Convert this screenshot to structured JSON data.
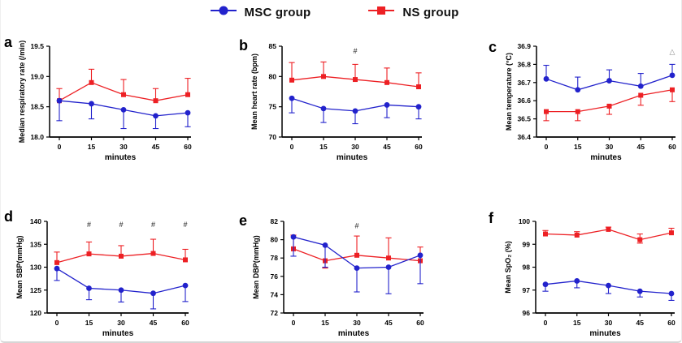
{
  "legend": {
    "items": [
      {
        "label": "MSC group",
        "color": "#2222cc",
        "marker": "circle"
      },
      {
        "label": "NS group",
        "color": "#ed2024",
        "marker": "square"
      }
    ]
  },
  "chart_data": [
    {
      "type": "line",
      "panel": "a",
      "xlabel": "minutes",
      "ylabel": "Median respiratory rate (/min)",
      "x": [
        0,
        15,
        30,
        45,
        60
      ],
      "xlim": [
        0,
        60
      ],
      "ylim": [
        18.0,
        19.5
      ],
      "yticks": [
        18.0,
        18.5,
        19.0,
        19.5
      ],
      "ydecimals": 1,
      "grid": false,
      "series": [
        {
          "name": "MSC group",
          "color": "#2222cc",
          "marker": "circle",
          "values": [
            18.6,
            18.55,
            18.45,
            18.35,
            18.4
          ],
          "err_up": [
            0,
            0,
            0,
            0,
            0
          ],
          "err_down": [
            0.33,
            0.25,
            0.31,
            0.21,
            0.23
          ]
        },
        {
          "name": "NS group",
          "color": "#ed2024",
          "marker": "square",
          "values": [
            18.6,
            18.9,
            18.7,
            18.6,
            18.7
          ],
          "err_up": [
            0.2,
            0.22,
            0.25,
            0.2,
            0.27
          ],
          "err_down": [
            0,
            0,
            0,
            0,
            0
          ]
        }
      ],
      "annotations": []
    },
    {
      "type": "line",
      "panel": "b",
      "xlabel": "minutes",
      "ylabel": "Mean heart rate (bpm)",
      "x": [
        0,
        15,
        30,
        45,
        60
      ],
      "xlim": [
        0,
        60
      ],
      "ylim": [
        70,
        85
      ],
      "yticks": [
        70,
        75,
        80,
        85
      ],
      "ydecimals": 0,
      "grid": false,
      "series": [
        {
          "name": "MSC group",
          "color": "#2222cc",
          "marker": "circle",
          "values": [
            76.4,
            74.7,
            74.3,
            75.3,
            75.0
          ],
          "err_up": [
            0,
            0,
            0,
            0,
            0
          ],
          "err_down": [
            2.4,
            2.3,
            2.1,
            2.1,
            2.0
          ]
        },
        {
          "name": "NS group",
          "color": "#ed2024",
          "marker": "square",
          "values": [
            79.4,
            80.0,
            79.5,
            79.0,
            78.3
          ],
          "err_up": [
            2.9,
            2.4,
            2.5,
            2.4,
            2.3
          ],
          "err_down": [
            0,
            0,
            0,
            0,
            0
          ]
        }
      ],
      "annotations": [
        {
          "x": 30,
          "y": 84.2,
          "text": "#",
          "color": "#222"
        }
      ]
    },
    {
      "type": "line",
      "panel": "c",
      "xlabel": "minutes",
      "ylabel": "Mean temperature (°C)",
      "x": [
        0,
        15,
        30,
        45,
        60
      ],
      "xlim": [
        0,
        60
      ],
      "ylim": [
        36.4,
        36.9
      ],
      "yticks": [
        36.4,
        36.5,
        36.6,
        36.7,
        36.8,
        36.9
      ],
      "ydecimals": 1,
      "grid": false,
      "series": [
        {
          "name": "MSC group",
          "color": "#2222cc",
          "marker": "circle",
          "values": [
            36.72,
            36.66,
            36.71,
            36.68,
            36.74
          ],
          "err_up": [
            0.075,
            0.07,
            0.06,
            0.07,
            0.06
          ],
          "err_down": [
            0,
            0,
            0,
            0,
            0
          ]
        },
        {
          "name": "NS group",
          "color": "#ed2024",
          "marker": "square",
          "values": [
            36.54,
            36.54,
            36.57,
            36.63,
            36.66
          ],
          "err_up": [
            0,
            0,
            0,
            0,
            0
          ],
          "err_down": [
            0.05,
            0.05,
            0.045,
            0.055,
            0.065
          ]
        }
      ],
      "annotations": [
        {
          "x": 60,
          "y": 36.87,
          "text": "△",
          "color": "#8a8a8a"
        }
      ]
    },
    {
      "type": "line",
      "panel": "d",
      "xlabel": "minutes",
      "ylabel": "Mean SBP(mmHg)",
      "x": [
        0,
        15,
        30,
        45,
        60
      ],
      "xlim": [
        0,
        60
      ],
      "ylim": [
        120,
        140
      ],
      "yticks": [
        120,
        125,
        130,
        135,
        140
      ],
      "ydecimals": 0,
      "grid": false,
      "series": [
        {
          "name": "MSC group",
          "color": "#2222cc",
          "marker": "circle",
          "values": [
            129.7,
            125.4,
            125.0,
            124.3,
            126.0
          ],
          "err_up": [
            0,
            0,
            0,
            0,
            0
          ],
          "err_down": [
            2.6,
            2.5,
            2.6,
            3.4,
            3.5
          ]
        },
        {
          "name": "NS group",
          "color": "#ed2024",
          "marker": "square",
          "values": [
            131.0,
            132.9,
            132.4,
            133.0,
            131.6
          ],
          "err_up": [
            2.3,
            2.6,
            2.3,
            3.1,
            2.3
          ],
          "err_down": [
            0,
            0,
            0,
            0,
            0
          ]
        }
      ],
      "annotations": [
        {
          "x": 15,
          "y": 139.3,
          "text": "#",
          "color": "#222"
        },
        {
          "x": 30,
          "y": 139.3,
          "text": "#",
          "color": "#222"
        },
        {
          "x": 45,
          "y": 139.3,
          "text": "#",
          "color": "#222"
        },
        {
          "x": 60,
          "y": 139.3,
          "text": "#",
          "color": "#222"
        }
      ]
    },
    {
      "type": "line",
      "panel": "e",
      "xlabel": "minutes",
      "ylabel": "Mean DBP(mmHg)",
      "x": [
        0,
        15,
        30,
        45,
        60
      ],
      "xlim": [
        0,
        60
      ],
      "ylim": [
        72,
        82
      ],
      "yticks": [
        72,
        74,
        76,
        78,
        80,
        82
      ],
      "ydecimals": 0,
      "grid": false,
      "series": [
        {
          "name": "MSC group",
          "color": "#2222cc",
          "marker": "circle",
          "values": [
            80.3,
            79.4,
            76.9,
            77.0,
            78.3
          ],
          "err_up": [
            0,
            0,
            0,
            0,
            0
          ],
          "err_down": [
            2.1,
            2.4,
            2.6,
            2.9,
            3.1
          ]
        },
        {
          "name": "NS group",
          "color": "#ed2024",
          "marker": "square",
          "values": [
            79.0,
            77.7,
            78.3,
            78.0,
            77.7
          ],
          "err_up": [
            1.5,
            0,
            2.1,
            2.2,
            1.5
          ],
          "err_down": [
            0,
            0.8,
            0,
            0,
            0
          ]
        }
      ],
      "annotations": [
        {
          "x": 30,
          "y": 81.5,
          "text": "#",
          "color": "#222"
        }
      ]
    },
    {
      "type": "line",
      "panel": "f",
      "xlabel": "minutes",
      "ylabel": "Mean SpO₂ (%)",
      "x": [
        0,
        15,
        30,
        45,
        60
      ],
      "xlim": [
        0,
        60
      ],
      "ylim": [
        96,
        100
      ],
      "yticks": [
        96,
        97,
        98,
        99,
        100
      ],
      "ydecimals": 0,
      "grid": false,
      "series": [
        {
          "name": "MSC group",
          "color": "#2222cc",
          "marker": "circle",
          "values": [
            97.25,
            97.4,
            97.2,
            96.95,
            96.85
          ],
          "err_up": [
            0,
            0,
            0,
            0,
            0
          ],
          "err_down": [
            0.3,
            0.3,
            0.35,
            0.25,
            0.3
          ]
        },
        {
          "name": "NS group",
          "color": "#ed2024",
          "marker": "square",
          "values": [
            99.45,
            99.4,
            99.65,
            99.2,
            99.5
          ],
          "err_up": [
            0.15,
            0.15,
            0.1,
            0.25,
            0.2
          ],
          "err_down": [
            0,
            0,
            0,
            0.15,
            0
          ]
        }
      ],
      "annotations": []
    }
  ]
}
